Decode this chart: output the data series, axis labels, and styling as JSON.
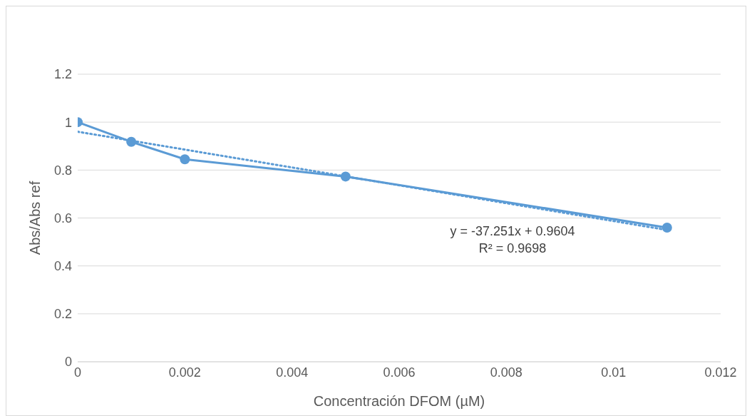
{
  "chart_data": {
    "type": "line",
    "xlabel": "Concentración DFOM (µM)",
    "ylabel": "Abs/Abs ref",
    "xlim": [
      0,
      0.012
    ],
    "xticks": [
      0,
      0.002,
      0.004,
      0.006,
      0.008,
      0.01,
      0.012
    ],
    "ylim": [
      0,
      1.2
    ],
    "yticks": [
      0,
      0.2,
      0.4,
      0.6,
      0.8,
      1,
      1.2
    ],
    "grid": "y",
    "series": [
      {
        "color": "#5b9bd5",
        "x": [
          0,
          0.001,
          0.002,
          0.005,
          0.011
        ],
        "values": [
          1.0,
          0.918,
          0.845,
          0.773,
          0.56
        ],
        "marker": "circle",
        "line_style": "solid"
      },
      {
        "color": "#5b9bd5",
        "x": [
          0,
          0.011
        ],
        "values": [
          0.96,
          0.55
        ],
        "marker": "none",
        "line_style": "dotted"
      }
    ],
    "annotations": [
      "y = -37.251x + 0.9604",
      "R² = 0.9698"
    ]
  }
}
